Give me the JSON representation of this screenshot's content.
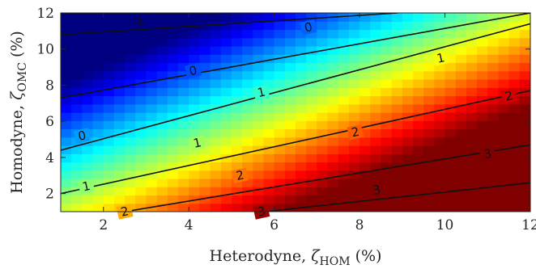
{
  "chart_data": {
    "type": "heatmap",
    "title": "",
    "xlabel": {
      "prefix": "Heterodyne, ",
      "symbol": "ζ",
      "subscript": "HOM",
      "suffix": " (%)"
    },
    "ylabel": {
      "prefix": "Homodyne, ",
      "symbol": "ζ",
      "subscript": "OMC",
      "suffix": " (%)"
    },
    "xlim": [
      1,
      12
    ],
    "ylim": [
      1,
      12
    ],
    "xticks": [
      2,
      4,
      6,
      8,
      10,
      12
    ],
    "yticks": [
      2,
      4,
      6,
      8,
      10,
      12
    ],
    "colormap": "jet",
    "color_range": [
      -2.2,
      3.9
    ],
    "surface": "value ≈ 0.5·(x_het − 1) − 0.5·(y_hom − 1) + 1.35",
    "contours": [
      {
        "level": -1,
        "label": "-1",
        "points": [
          [
            1,
            12
          ],
          [
            4.6,
            12
          ]
        ]
      },
      {
        "level": 0,
        "label": "0",
        "points": [
          [
            1,
            10.8
          ],
          [
            8.9,
            12
          ]
        ]
      },
      {
        "level": 0,
        "label": "0",
        "points": [
          [
            1,
            7.3
          ],
          [
            12,
            12
          ]
        ]
      },
      {
        "level": 1,
        "label": "1",
        "points": [
          [
            1,
            4.4
          ],
          [
            12,
            11.4
          ]
        ]
      },
      {
        "level": 2,
        "label": "2",
        "points": [
          [
            1,
            2.0
          ],
          [
            12,
            7.7
          ]
        ]
      },
      {
        "level": 2,
        "label": "2",
        "points": [
          [
            2.5,
            1.0
          ],
          [
            12,
            4.7
          ]
        ]
      },
      {
        "level": 3,
        "label": "3",
        "points": [
          [
            5.8,
            1.0
          ],
          [
            12,
            2.6
          ]
        ]
      }
    ],
    "contour_labels": [
      {
        "text": "-1",
        "x": 2.8,
        "y": 11.5
      },
      {
        "text": "0",
        "x": 6.8,
        "y": 11.2
      },
      {
        "text": "0",
        "x": 4.1,
        "y": 8.8
      },
      {
        "text": "0",
        "x": 1.5,
        "y": 5.2
      },
      {
        "text": "1",
        "x": 9.9,
        "y": 9.5
      },
      {
        "text": "1",
        "x": 5.7,
        "y": 7.6
      },
      {
        "text": "1",
        "x": 4.2,
        "y": 4.8
      },
      {
        "text": "1",
        "x": 1.6,
        "y": 2.4
      },
      {
        "text": "2",
        "x": 11.5,
        "y": 7.4
      },
      {
        "text": "2",
        "x": 7.9,
        "y": 5.4
      },
      {
        "text": "2",
        "x": 5.2,
        "y": 3.0
      },
      {
        "text": "2",
        "x": 2.5,
        "y": 1.0
      },
      {
        "text": "3",
        "x": 11.0,
        "y": 4.2
      },
      {
        "text": "3",
        "x": 8.4,
        "y": 2.2
      },
      {
        "text": "3",
        "x": 5.7,
        "y": 1.0
      }
    ]
  }
}
